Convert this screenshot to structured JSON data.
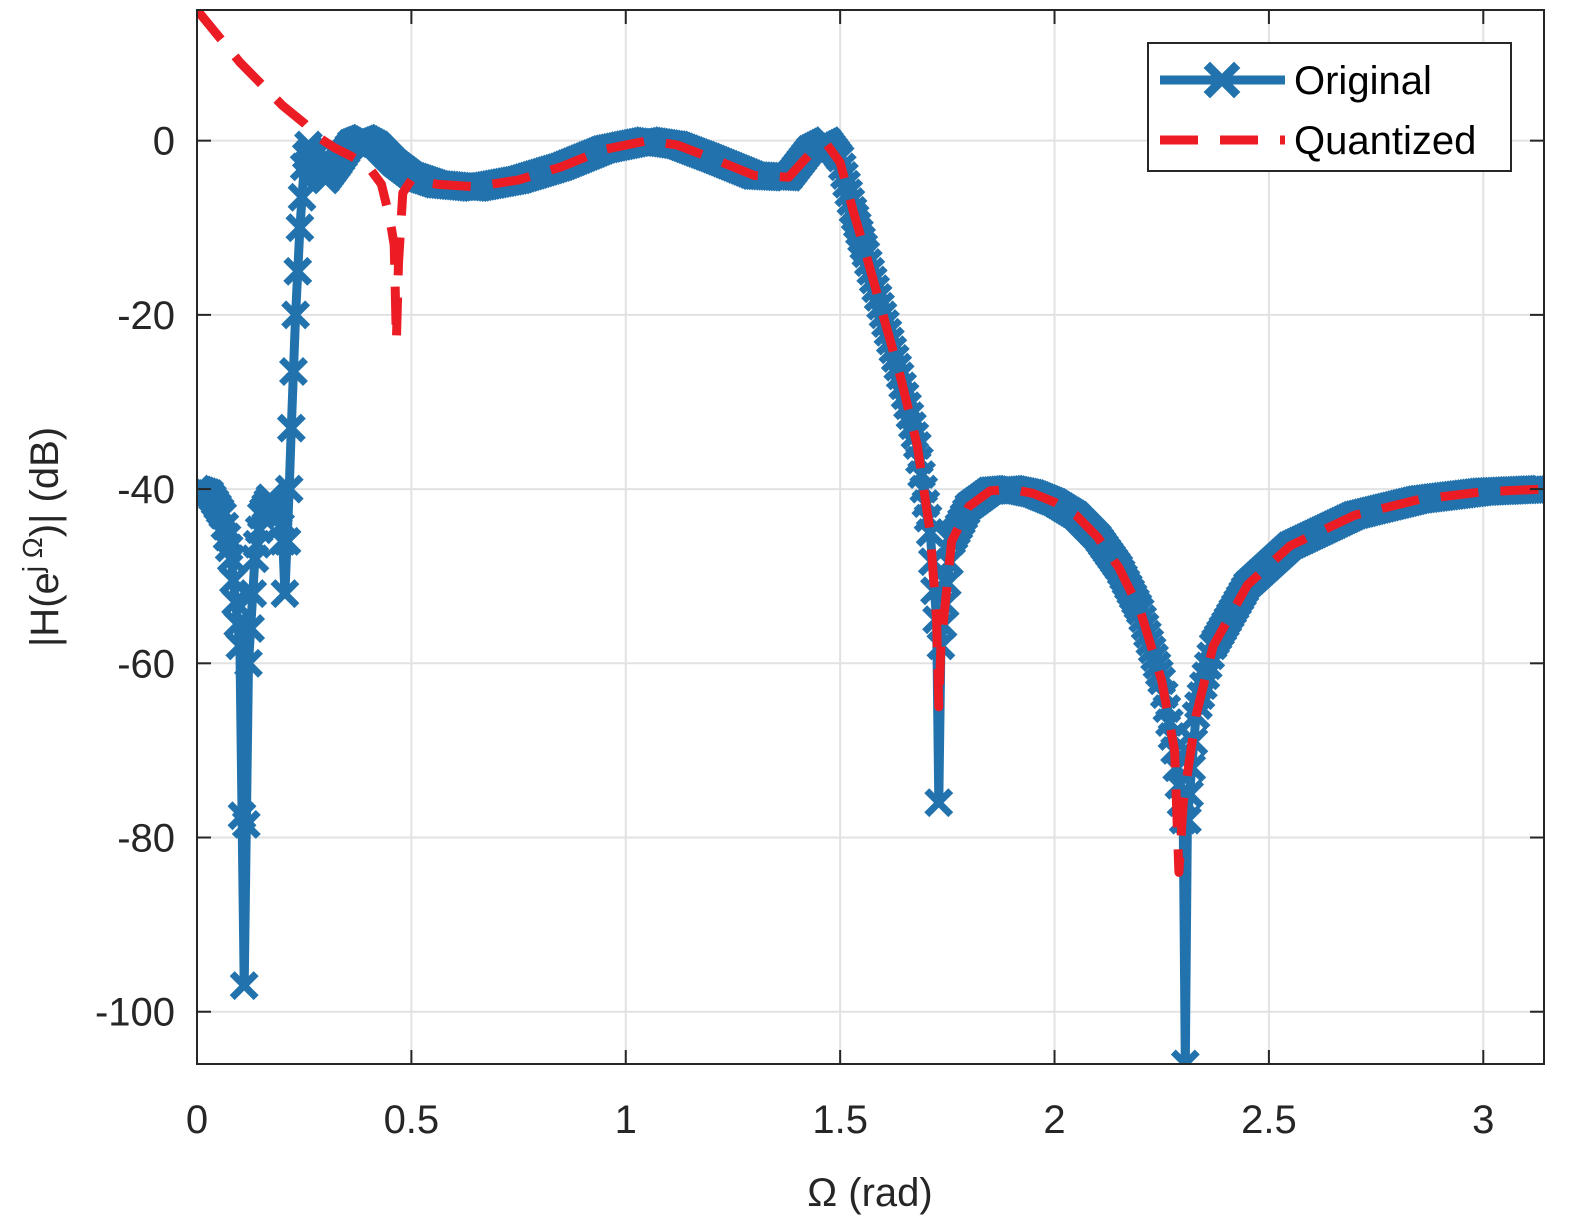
{
  "chart_data": {
    "type": "line",
    "title": "",
    "xlabel": "Ω (rad)",
    "ylabel": "|H(e^{jΩ})| (dB)",
    "ylabel_parts": {
      "base": "|H(e",
      "sup": "j Ω",
      "tail": ")| (dB)"
    },
    "xlim": [
      0,
      3.1416
    ],
    "ylim": [
      -106,
      15
    ],
    "grid": true,
    "legend_position": "top-right",
    "x_ticks": [
      0,
      0.5,
      1,
      1.5,
      2,
      2.5,
      3
    ],
    "x_tick_labels": [
      "0",
      "0.5",
      "1",
      "1.5",
      "2",
      "2.5",
      "3"
    ],
    "y_ticks": [
      0,
      -20,
      -40,
      -60,
      -80,
      -100
    ],
    "y_tick_labels": [
      "0",
      "-20",
      "-40",
      "-60",
      "-80",
      "-100"
    ],
    "colors": {
      "original": "#2273AD",
      "quantized": "#EB1C24",
      "grid": "#E2E2E2",
      "axis": "#262626"
    },
    "series": [
      {
        "name": "Original",
        "style": "solid-x-markers",
        "points": [
          [
            0.0,
            -40.0
          ],
          [
            0.03,
            -40.5
          ],
          [
            0.06,
            -43.0
          ],
          [
            0.08,
            -48.0
          ],
          [
            0.1,
            -58.0
          ],
          [
            0.11,
            -97.0
          ],
          [
            0.12,
            -60.0
          ],
          [
            0.135,
            -48.0
          ],
          [
            0.15,
            -43.0
          ],
          [
            0.17,
            -41.0
          ],
          [
            0.19,
            -42.5
          ],
          [
            0.2,
            -46.0
          ],
          [
            0.205,
            -52.0
          ],
          [
            0.215,
            -40.0
          ],
          [
            0.22,
            -33.0
          ],
          [
            0.23,
            -20.0
          ],
          [
            0.24,
            -10.0
          ],
          [
            0.25,
            -3.0
          ],
          [
            0.26,
            -0.5
          ],
          [
            0.28,
            -3.5
          ],
          [
            0.3,
            -4.5
          ],
          [
            0.33,
            -2.5
          ],
          [
            0.36,
            -0.3
          ],
          [
            0.39,
            0.3
          ],
          [
            0.42,
            -0.5
          ],
          [
            0.46,
            -2.5
          ],
          [
            0.5,
            -4.0
          ],
          [
            0.56,
            -5.0
          ],
          [
            0.65,
            -5.4
          ],
          [
            0.75,
            -4.5
          ],
          [
            0.85,
            -3.0
          ],
          [
            0.95,
            -1.0
          ],
          [
            1.05,
            0.0
          ],
          [
            1.12,
            -0.5
          ],
          [
            1.2,
            -2.0
          ],
          [
            1.3,
            -4.0
          ],
          [
            1.38,
            -4.2
          ],
          [
            1.43,
            -1.0
          ],
          [
            1.47,
            0.0
          ],
          [
            1.5,
            -2.0
          ],
          [
            1.53,
            -8.0
          ],
          [
            1.56,
            -13.0
          ],
          [
            1.6,
            -20.0
          ],
          [
            1.64,
            -27.0
          ],
          [
            1.68,
            -35.0
          ],
          [
            1.71,
            -45.0
          ],
          [
            1.725,
            -55.0
          ],
          [
            1.73,
            -76.0
          ],
          [
            1.735,
            -58.0
          ],
          [
            1.76,
            -46.0
          ],
          [
            1.8,
            -42.0
          ],
          [
            1.85,
            -40.2
          ],
          [
            1.9,
            -40.0
          ],
          [
            1.95,
            -40.5
          ],
          [
            2.0,
            -41.5
          ],
          [
            2.05,
            -43.0
          ],
          [
            2.1,
            -45.5
          ],
          [
            2.15,
            -49.0
          ],
          [
            2.2,
            -54.0
          ],
          [
            2.25,
            -62.0
          ],
          [
            2.28,
            -70.0
          ],
          [
            2.3,
            -78.0
          ],
          [
            2.305,
            -106.0
          ],
          [
            2.31,
            -78.0
          ],
          [
            2.33,
            -66.0
          ],
          [
            2.37,
            -58.0
          ],
          [
            2.45,
            -51.0
          ],
          [
            2.55,
            -46.5
          ],
          [
            2.7,
            -43.0
          ],
          [
            2.85,
            -41.2
          ],
          [
            3.0,
            -40.3
          ],
          [
            3.14,
            -40.0
          ]
        ]
      },
      {
        "name": "Quantized",
        "style": "dashed",
        "points": [
          [
            0.0,
            15.0
          ],
          [
            0.05,
            12.0
          ],
          [
            0.1,
            9.0
          ],
          [
            0.15,
            6.5
          ],
          [
            0.2,
            4.0
          ],
          [
            0.25,
            2.0
          ],
          [
            0.28,
            0.5
          ],
          [
            0.32,
            -0.8
          ],
          [
            0.36,
            -1.8
          ],
          [
            0.4,
            -3.0
          ],
          [
            0.43,
            -5.0
          ],
          [
            0.45,
            -9.0
          ],
          [
            0.46,
            -12.0
          ],
          [
            0.465,
            -23.0
          ],
          [
            0.47,
            -14.0
          ],
          [
            0.48,
            -6.0
          ],
          [
            0.5,
            -4.5
          ],
          [
            0.56,
            -5.0
          ],
          [
            0.65,
            -5.3
          ],
          [
            0.75,
            -4.5
          ],
          [
            0.85,
            -3.0
          ],
          [
            0.95,
            -1.0
          ],
          [
            1.05,
            0.0
          ],
          [
            1.12,
            -0.5
          ],
          [
            1.2,
            -2.0
          ],
          [
            1.3,
            -4.0
          ],
          [
            1.38,
            -4.2
          ],
          [
            1.43,
            -1.5
          ],
          [
            1.47,
            -0.5
          ],
          [
            1.5,
            -2.5
          ],
          [
            1.53,
            -8.0
          ],
          [
            1.56,
            -13.0
          ],
          [
            1.6,
            -20.0
          ],
          [
            1.64,
            -27.0
          ],
          [
            1.68,
            -35.0
          ],
          [
            1.71,
            -45.0
          ],
          [
            1.725,
            -55.0
          ],
          [
            1.73,
            -65.0
          ],
          [
            1.735,
            -58.0
          ],
          [
            1.76,
            -46.0
          ],
          [
            1.8,
            -42.0
          ],
          [
            1.85,
            -40.2
          ],
          [
            1.9,
            -40.0
          ],
          [
            1.95,
            -40.5
          ],
          [
            2.0,
            -41.5
          ],
          [
            2.05,
            -43.0
          ],
          [
            2.1,
            -45.5
          ],
          [
            2.15,
            -49.0
          ],
          [
            2.2,
            -54.0
          ],
          [
            2.25,
            -62.0
          ],
          [
            2.28,
            -70.0
          ],
          [
            2.29,
            -84.0
          ],
          [
            2.3,
            -76.0
          ],
          [
            2.33,
            -66.0
          ],
          [
            2.37,
            -58.0
          ],
          [
            2.45,
            -51.0
          ],
          [
            2.55,
            -46.5
          ],
          [
            2.7,
            -43.0
          ],
          [
            2.85,
            -41.2
          ],
          [
            3.0,
            -40.3
          ],
          [
            3.14,
            -40.0
          ]
        ]
      }
    ]
  }
}
